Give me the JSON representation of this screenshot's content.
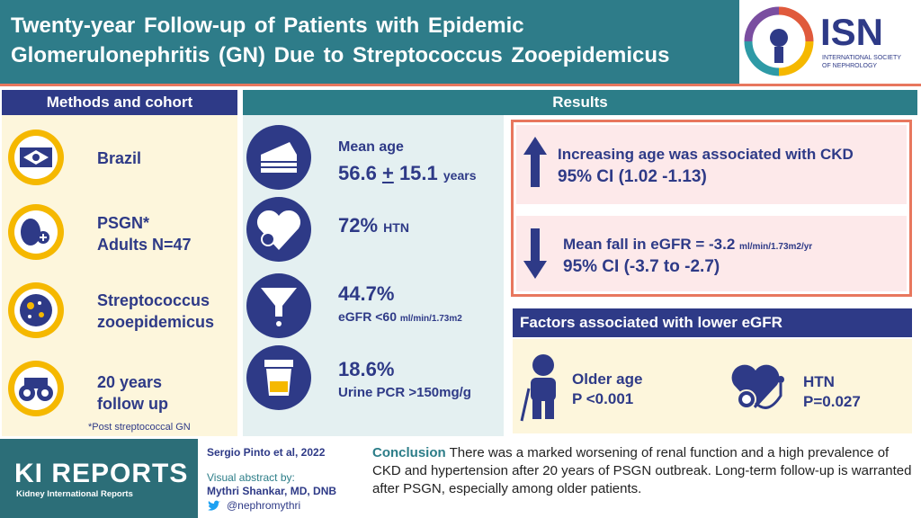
{
  "header": {
    "title_lines": [
      "Twenty-year Follow-up of Patients with Epidemic",
      "Glomerulonephritis (GN) Due to Streptococcus Zooepidemicus"
    ],
    "logo": {
      "abbr": "ISN",
      "name_lines": [
        "INTERNATIONAL SOCIETY",
        "OF NEPHROLOGY"
      ]
    }
  },
  "methods": {
    "heading": "Methods and cohort",
    "items": [
      {
        "lines": [
          "Brazil"
        ]
      },
      {
        "lines": [
          "PSGN*",
          "Adults N=47"
        ]
      },
      {
        "lines": [
          "Streptococcus",
          "zooepidemicus"
        ]
      },
      {
        "lines": [
          "20 years",
          "follow up"
        ]
      }
    ],
    "footnote": "*Post streptococcal GN"
  },
  "results": {
    "heading": "Results",
    "stats": [
      {
        "label": "Mean age",
        "mean": "56.6",
        "pm": "+",
        "sd": "15.1",
        "unit": "years"
      },
      {
        "value": "72%",
        "unit": "HTN"
      },
      {
        "value": "44.7%",
        "label": "eGFR <60",
        "unit": "ml/min/1.73m2"
      },
      {
        "value": "18.6%",
        "label": "Urine PCR >150mg/g"
      }
    ],
    "findings": [
      {
        "line1": "Increasing age was associated with CKD",
        "line2": "95% CI (1.02 -1.13)"
      },
      {
        "line1": "Mean fall in eGFR = -3.2",
        "unit": "ml/min/1.73m2/yr",
        "line2": "95% CI (-3.7 to -2.7)"
      }
    ],
    "factors": {
      "heading": "Factors associated with lower eGFR",
      "items": [
        {
          "label": "Older age",
          "p": "P <0.001"
        },
        {
          "label": "HTN",
          "p": "P=0.027"
        }
      ]
    }
  },
  "footer": {
    "brand": "KI REPORTS",
    "brand_sub": "Kidney International Reports",
    "citation": "Sergio Pinto et al, 2022",
    "credit_label": "Visual abstract by:",
    "author": "Mythri Shankar, MD, DNB",
    "twitter": "@nephromythri",
    "conclusion_label": "Conclusion",
    "conclusion_text": "There was a marked worsening of renal function and a high prevalence of CKD and hypertension after 20 years of PSGN outbreak. Long-term follow-up is warranted after PSGN, especially among older patients."
  }
}
